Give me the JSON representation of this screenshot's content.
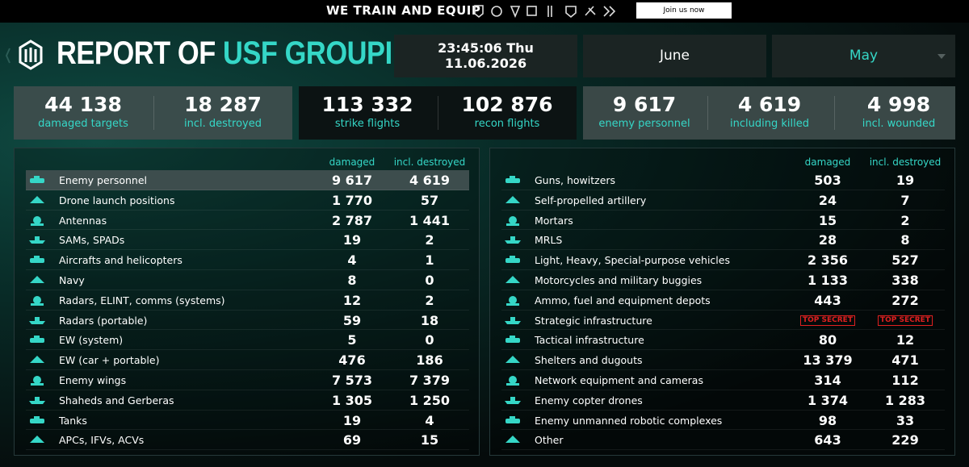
{
  "top_bar": {
    "title": "WE TRAIN AND EQUIP",
    "button": "Join us now"
  },
  "header": {
    "title_prefix": "REPORT OF",
    "title_highlight": "USF GROUPING",
    "time": "23:45:06 Thu",
    "date": "11.06.2026",
    "tabs": [
      "June",
      "May"
    ]
  },
  "summary": [
    {
      "items": [
        {
          "value": "44 138",
          "label": "damaged targets"
        },
        {
          "value": "18 287",
          "label": "incl. destroyed"
        }
      ]
    },
    {
      "items": [
        {
          "value": "113 332",
          "label": "strike flights"
        },
        {
          "value": "102 876",
          "label": "recon flights"
        }
      ]
    },
    {
      "items": [
        {
          "value": "9 617",
          "label": "enemy personnel"
        },
        {
          "value": "4 619",
          "label": "including killed"
        },
        {
          "value": "4 998",
          "label": "incl. wounded"
        }
      ]
    }
  ],
  "left_table": {
    "columns": [
      "damaged",
      "incl. destroyed"
    ],
    "rows": [
      {
        "name": "Enemy personnel",
        "damaged": "9 617",
        "destroyed": "4 619"
      },
      {
        "name": "Drone launch positions",
        "damaged": "1 770",
        "destroyed": "57"
      },
      {
        "name": "Antennas",
        "damaged": "2 787",
        "destroyed": "1 441"
      },
      {
        "name": "SAMs, SPADs",
        "damaged": "19",
        "destroyed": "2"
      },
      {
        "name": "Aircrafts and helicopters",
        "damaged": "4",
        "destroyed": "1"
      },
      {
        "name": "Navy",
        "damaged": "8",
        "destroyed": "0"
      },
      {
        "name": "Radars, ELINT, comms (systems)",
        "damaged": "12",
        "destroyed": "2"
      },
      {
        "name": "Radars (portable)",
        "damaged": "59",
        "destroyed": "18"
      },
      {
        "name": "EW (system)",
        "damaged": "5",
        "destroyed": "0"
      },
      {
        "name": "EW (car + portable)",
        "damaged": "476",
        "destroyed": "186"
      },
      {
        "name": "Enemy wings",
        "damaged": "7 573",
        "destroyed": "7 379"
      },
      {
        "name": "Shaheds and Gerberas",
        "damaged": "1 305",
        "destroyed": "1 250"
      },
      {
        "name": "Tanks",
        "damaged": "19",
        "destroyed": "4"
      },
      {
        "name": "APCs, IFVs, ACVs",
        "damaged": "69",
        "destroyed": "15"
      }
    ]
  },
  "right_table": {
    "columns": [
      "damaged",
      "incl. destroyed"
    ],
    "rows": [
      {
        "name": "Guns, howitzers",
        "damaged": "503",
        "destroyed": "19"
      },
      {
        "name": "Self-propelled artillery",
        "damaged": "24",
        "destroyed": "7"
      },
      {
        "name": "Mortars",
        "damaged": "15",
        "destroyed": "2"
      },
      {
        "name": "MRLS",
        "damaged": "28",
        "destroyed": "8"
      },
      {
        "name": "Light, Heavy, Special-purpose vehicles",
        "damaged": "2 356",
        "destroyed": "527"
      },
      {
        "name": "Motorcycles and military buggies",
        "damaged": "1 133",
        "destroyed": "338"
      },
      {
        "name": "Ammo, fuel and equipment depots",
        "damaged": "443",
        "destroyed": "272"
      },
      {
        "name": "Strategic infrastructure",
        "damaged": "TOP SECRET",
        "destroyed": "TOP SECRET"
      },
      {
        "name": "Tactical infrastructure",
        "damaged": "80",
        "destroyed": "12"
      },
      {
        "name": "Shelters and dugouts",
        "damaged": "13 379",
        "destroyed": "471"
      },
      {
        "name": "Network equipment and cameras",
        "damaged": "314",
        "destroyed": "112"
      },
      {
        "name": "Enemy copter drones",
        "damaged": "1 374",
        "destroyed": "1 283"
      },
      {
        "name": "Enemy unmanned robotic complexes",
        "damaged": "98",
        "destroyed": "33"
      },
      {
        "name": "Other",
        "damaged": "643",
        "destroyed": "229"
      }
    ]
  }
}
